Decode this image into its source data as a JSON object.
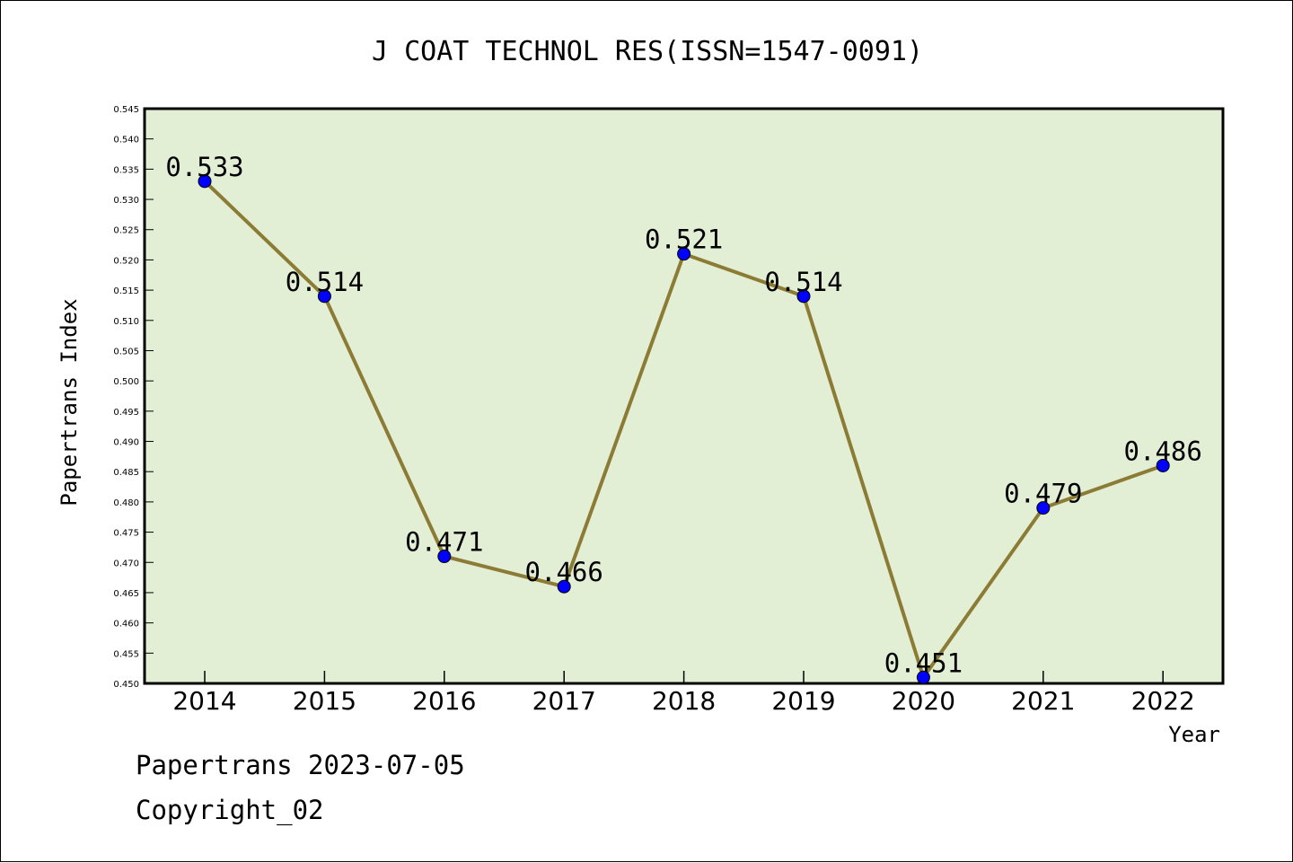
{
  "chart_data": {
    "type": "line",
    "title": "J COAT TECHNOL RES(ISSN=1547-0091)",
    "xlabel": "Year",
    "ylabel": "Papertrans Index",
    "categories": [
      "2014",
      "2015",
      "2016",
      "2017",
      "2018",
      "2019",
      "2020",
      "2021",
      "2022"
    ],
    "series": [
      {
        "values": [
          0.533,
          0.514,
          0.471,
          0.466,
          0.521,
          0.514,
          0.451,
          0.479,
          0.486
        ]
      }
    ],
    "data_labels": [
      "0.533",
      "0.514",
      "0.471",
      "0.466",
      "0.521",
      "0.514",
      "0.451",
      "0.479",
      "0.486"
    ],
    "ylim": [
      0.45,
      0.545
    ],
    "yticks": [
      "0.450",
      "0.455",
      "0.460",
      "0.465",
      "0.470",
      "0.475",
      "0.480",
      "0.485",
      "0.490",
      "0.495",
      "0.500",
      "0.505",
      "0.510",
      "0.515",
      "0.520",
      "0.525",
      "0.530",
      "0.535",
      "0.540",
      "0.545"
    ],
    "grid": false,
    "colors": {
      "plot_background": "#e2efd5",
      "line": "#8c7b35",
      "marker": "#0000ff"
    }
  },
  "footer": {
    "date_line": "Papertrans 2023-07-05",
    "copyright": "Copyright_02"
  }
}
